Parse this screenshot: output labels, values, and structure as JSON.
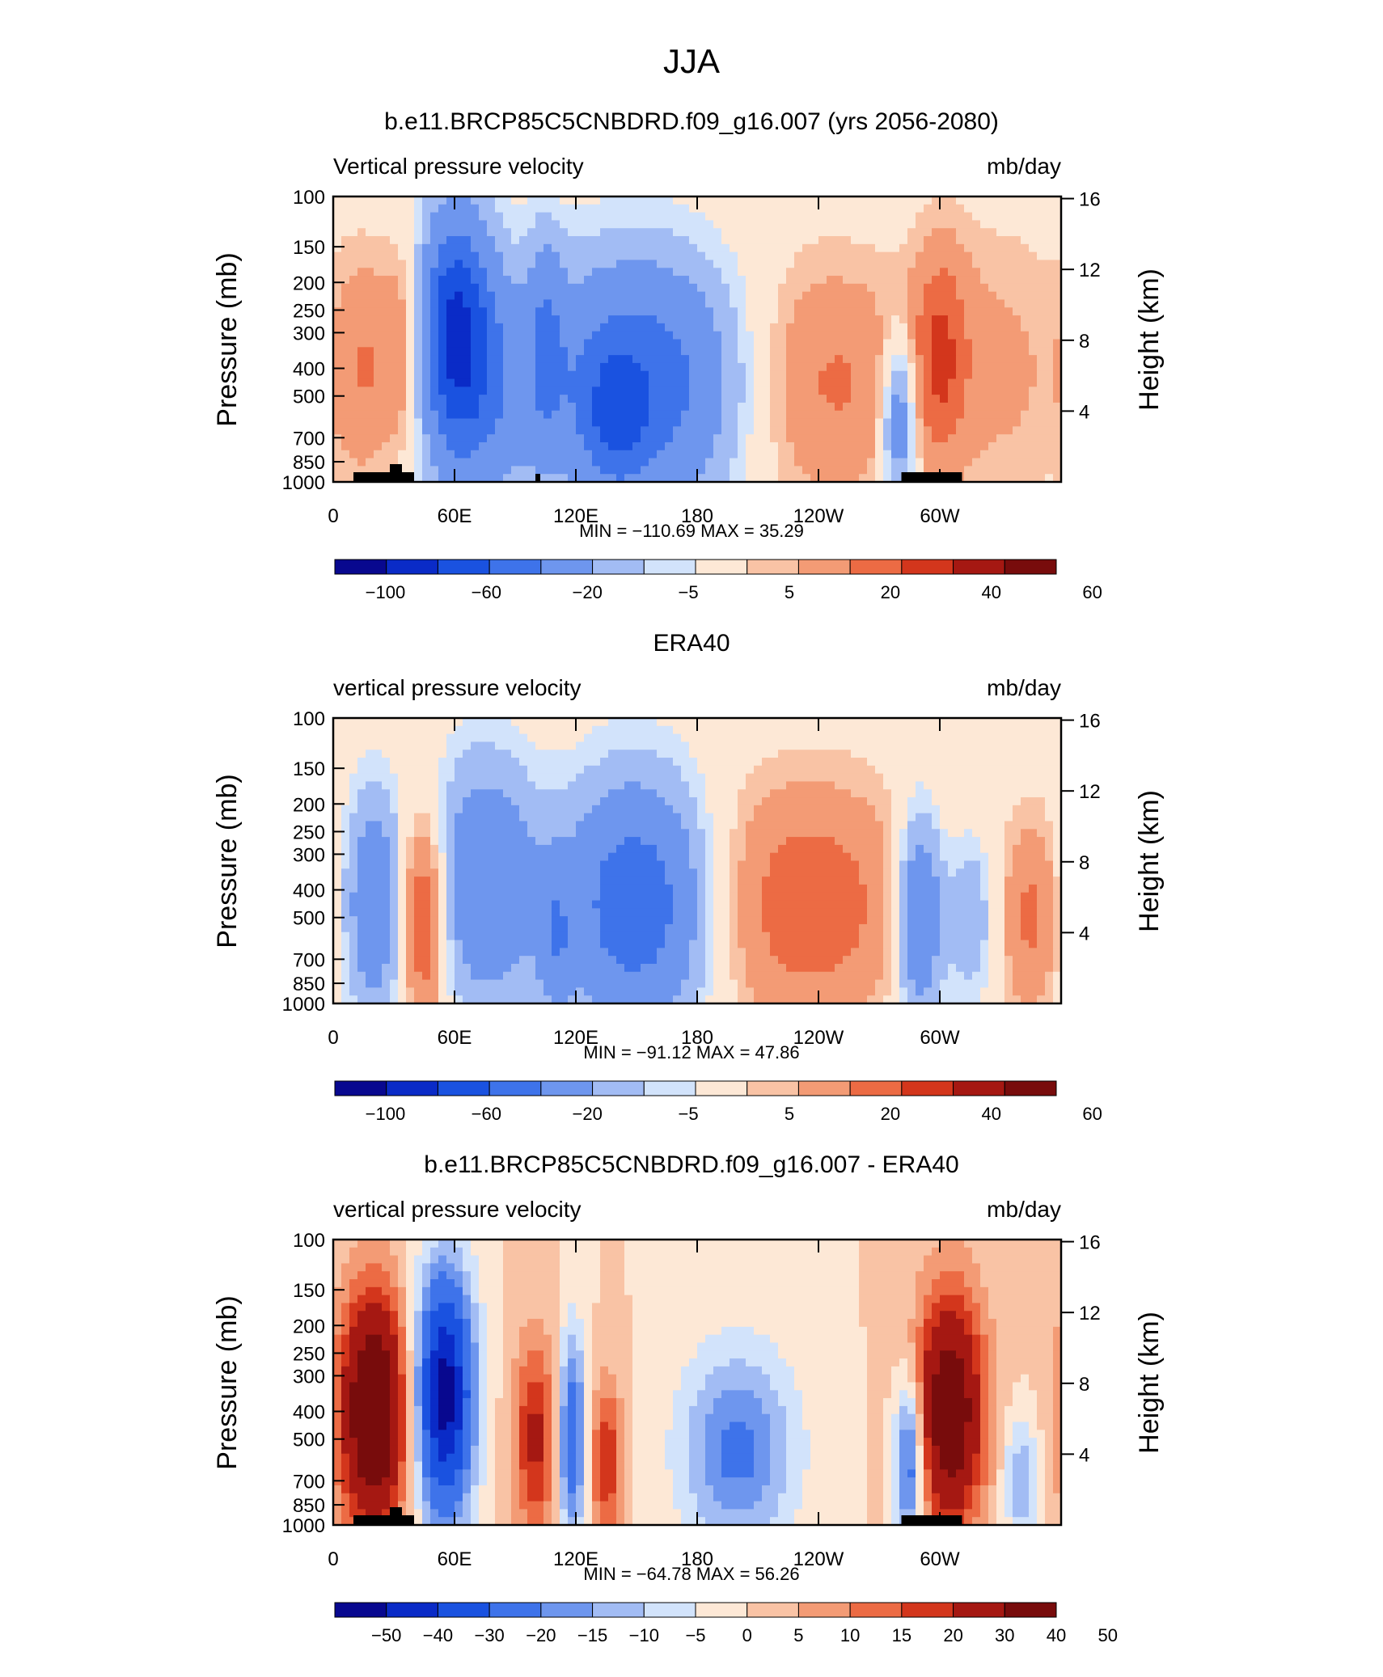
{
  "figure_title": "JJA",
  "colors": {
    "continent": "#000000",
    "frame": "#000000"
  },
  "palette_13": [
    "#08088f",
    "#0a2bc7",
    "#1a52e0",
    "#3e73ea",
    "#6e96ee",
    "#a2bcf4",
    "#d2e3fb",
    "#fde8d6",
    "#f9c3a5",
    "#f39b75",
    "#ec6b44",
    "#d3361c",
    "#a51812",
    "#780c0c"
  ],
  "palette_18": [
    "#08088f",
    "#0a2bc7",
    "#1a52e0",
    "#3e73ea",
    "#6e96ee",
    "#a2bcf4",
    "#d2e3fb",
    "#fde8d6",
    "#f9c3a5",
    "#f39b75",
    "#ec6b44",
    "#d3361c",
    "#a51812",
    "#780c0c"
  ],
  "chart_data": [
    {
      "type": "heatmap",
      "title": "b.e11.BRCP85C5CNBDRD.f09_g16.007 (yrs 2056-2080)",
      "left_label": "Vertical pressure velocity",
      "right_label": "mb/day",
      "ylabel": "Pressure (mb)",
      "ylabel_right": "Height (km)",
      "x_ticks": [
        "0",
        "60E",
        "120E",
        "180",
        "120W",
        "60W"
      ],
      "y_ticks": [
        "100",
        "150",
        "200",
        "250",
        "300",
        "400",
        "500",
        "700",
        "850",
        "1000"
      ],
      "y_right_ticks": [
        "16",
        "12",
        "8",
        "4"
      ],
      "stats": "MIN = −110.69   MAX =   35.29",
      "colorbar_labels": [
        "−100",
        "−60",
        "−20",
        "−5",
        "5",
        "20",
        "40",
        "60"
      ],
      "features": [
        {
          "lon": 15,
          "p": 400,
          "amp": 18,
          "w": 10,
          "h": 0.55
        },
        {
          "lon": 35,
          "p": 350,
          "amp": 22,
          "w": 8,
          "h": 0.5
        },
        {
          "lon": 60,
          "p": 280,
          "amp": -65,
          "w": 12,
          "h": 0.55
        },
        {
          "lon": 70,
          "p": 450,
          "amp": -35,
          "w": 18,
          "h": 0.6
        },
        {
          "lon": 105,
          "p": 300,
          "amp": -25,
          "w": 6,
          "h": 0.5
        },
        {
          "lon": 150,
          "p": 450,
          "amp": -55,
          "w": 35,
          "h": 0.6
        },
        {
          "lon": 140,
          "p": 600,
          "amp": -30,
          "w": 10,
          "h": 0.3
        },
        {
          "lon": 245,
          "p": 450,
          "amp": 22,
          "w": 30,
          "h": 0.6
        },
        {
          "lon": 280,
          "p": 600,
          "amp": -40,
          "w": 6,
          "h": 0.4
        },
        {
          "lon": 300,
          "p": 350,
          "amp": 25,
          "w": 10,
          "h": 0.55
        },
        {
          "lon": 330,
          "p": 400,
          "amp": 12,
          "w": 25,
          "h": 0.7
        }
      ],
      "continents": [
        [
          10,
          40
        ],
        [
          281,
          311
        ]
      ],
      "continent_bumps": [
        [
          28,
          34
        ]
      ],
      "continent_dots": [
        [
          100,
          102
        ]
      ]
    },
    {
      "type": "heatmap",
      "title": "ERA40",
      "left_label": "vertical pressure velocity",
      "right_label": "mb/day",
      "ylabel": "Pressure (mb)",
      "ylabel_right": "Height (km)",
      "x_ticks": [
        "0",
        "60E",
        "120E",
        "180",
        "120W",
        "60W"
      ],
      "y_ticks": [
        "100",
        "150",
        "200",
        "250",
        "300",
        "400",
        "500",
        "700",
        "850",
        "1000"
      ],
      "y_right_ticks": [
        "16",
        "12",
        "8",
        "4"
      ],
      "stats": "MIN = −91.12   MAX =   47.86",
      "colorbar_labels": [
        "−100",
        "−60",
        "−20",
        "−5",
        "5",
        "20",
        "40",
        "60"
      ],
      "features": [
        {
          "lon": 20,
          "p": 450,
          "amp": -35,
          "w": 10,
          "h": 0.55
        },
        {
          "lon": 45,
          "p": 500,
          "amp": 38,
          "w": 8,
          "h": 0.5
        },
        {
          "lon": 75,
          "p": 380,
          "amp": -38,
          "w": 18,
          "h": 0.6
        },
        {
          "lon": 110,
          "p": 600,
          "amp": -25,
          "w": 6,
          "h": 0.35
        },
        {
          "lon": 150,
          "p": 450,
          "amp": -55,
          "w": 25,
          "h": 0.6
        },
        {
          "lon": 235,
          "p": 450,
          "amp": 28,
          "w": 35,
          "h": 0.6
        },
        {
          "lon": 290,
          "p": 500,
          "amp": -45,
          "w": 8,
          "h": 0.5
        },
        {
          "lon": 315,
          "p": 500,
          "amp": -20,
          "w": 8,
          "h": 0.4
        },
        {
          "lon": 345,
          "p": 500,
          "amp": 22,
          "w": 10,
          "h": 0.5
        }
      ],
      "continents": [],
      "continent_bumps": [],
      "continent_dots": []
    },
    {
      "type": "heatmap",
      "title": "b.e11.BRCP85C5CNBDRD.f09_g16.007 - ERA40",
      "left_label": "vertical pressure velocity",
      "right_label": "mb/day",
      "ylabel": "Pressure (mb)",
      "ylabel_right": "Height (km)",
      "x_ticks": [
        "0",
        "60E",
        "120E",
        "180",
        "120W",
        "60W"
      ],
      "y_ticks": [
        "100",
        "150",
        "200",
        "250",
        "300",
        "400",
        "500",
        "700",
        "850",
        "1000"
      ],
      "y_right_ticks": [
        "16",
        "12",
        "8",
        "4"
      ],
      "stats": "MIN = −64.78   MAX =   56.26",
      "colorbar_labels": [
        "−50",
        "−40",
        "−30",
        "−20",
        "−15",
        "−10",
        "−5",
        "0",
        "5",
        "10",
        "15",
        "20",
        "30",
        "40",
        "50"
      ],
      "features": [
        {
          "lon": 20,
          "p": 400,
          "amp": 45,
          "w": 12,
          "h": 0.6
        },
        {
          "lon": 55,
          "p": 350,
          "amp": -55,
          "w": 10,
          "h": 0.6
        },
        {
          "lon": 100,
          "p": 500,
          "amp": 22,
          "w": 8,
          "h": 0.5
        },
        {
          "lon": 118,
          "p": 500,
          "amp": -30,
          "w": 5,
          "h": 0.5
        },
        {
          "lon": 135,
          "p": 600,
          "amp": 20,
          "w": 6,
          "h": 0.4
        },
        {
          "lon": 200,
          "p": 550,
          "amp": -22,
          "w": 20,
          "h": 0.5
        },
        {
          "lon": 285,
          "p": 600,
          "amp": -30,
          "w": 5,
          "h": 0.4
        },
        {
          "lon": 305,
          "p": 400,
          "amp": 40,
          "w": 12,
          "h": 0.6
        },
        {
          "lon": 340,
          "p": 700,
          "amp": -15,
          "w": 6,
          "h": 0.3
        }
      ],
      "continents": [
        [
          10,
          40
        ],
        [
          281,
          311
        ]
      ],
      "continent_bumps": [
        [
          28,
          34
        ]
      ],
      "continent_dots": []
    }
  ]
}
